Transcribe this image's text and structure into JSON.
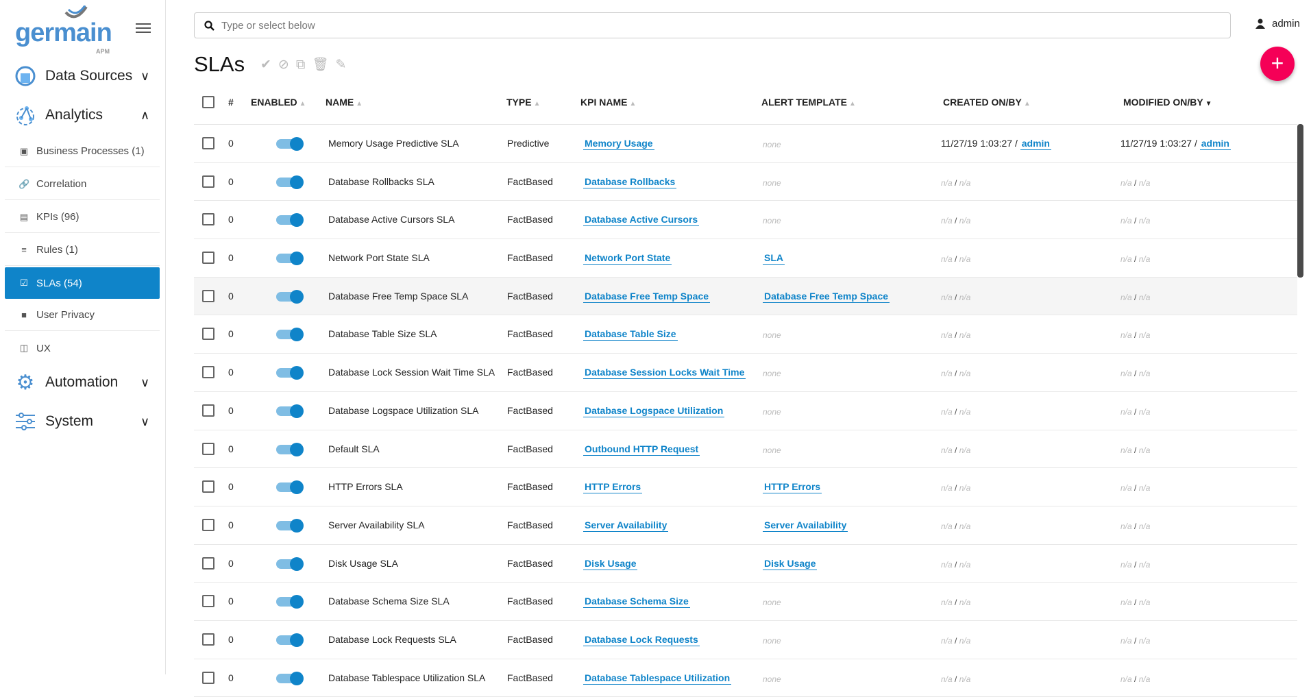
{
  "brand": {
    "name": "germain",
    "sub": "APM"
  },
  "sidebar": {
    "sections": [
      {
        "label": "Data Sources",
        "icon": "database-icon",
        "expanded": false
      },
      {
        "label": "Analytics",
        "icon": "analytics-icon",
        "expanded": true
      },
      {
        "label": "Automation",
        "icon": "gear-icon",
        "expanded": false
      },
      {
        "label": "System",
        "icon": "sliders-icon",
        "expanded": false
      }
    ],
    "items": [
      {
        "label": "Business Processes (1)",
        "icon": "briefcase-icon"
      },
      {
        "label": "Correlation",
        "icon": "link-icon"
      },
      {
        "label": "KPIs (96)",
        "icon": "list-icon"
      },
      {
        "label": "Rules (1)",
        "icon": "rules-icon"
      },
      {
        "label": "SLAs (54)",
        "icon": "clipboard-check-icon",
        "active": true
      },
      {
        "label": "User Privacy",
        "icon": "camera-icon"
      },
      {
        "label": "UX",
        "icon": "monitor-icon"
      }
    ]
  },
  "search": {
    "placeholder": "Type or select below",
    "value": ""
  },
  "user": {
    "name": "admin"
  },
  "page": {
    "title": "SLAs"
  },
  "colors": {
    "accent": "#0f84c9",
    "fab": "#f50057"
  },
  "table": {
    "headers": [
      "#",
      "ENABLED",
      "NAME",
      "TYPE",
      "KPI NAME",
      "ALERT TEMPLATE",
      "CREATED ON/BY",
      "MODIFIED ON/BY"
    ],
    "sorted_column": "MODIFIED ON/BY",
    "rows": [
      {
        "num": "0",
        "enabled": true,
        "name": "Memory Usage Predictive SLA",
        "type": "Predictive",
        "kpi": "Memory Usage",
        "alert": "none",
        "created_on": "11/27/19 1:03:27",
        "created_by": "admin",
        "modified_on": "11/27/19 1:03:27",
        "modified_by": "admin"
      },
      {
        "num": "0",
        "enabled": true,
        "name": "Database Rollbacks SLA",
        "type": "FactBased",
        "kpi": "Database Rollbacks",
        "alert": "none",
        "created_on": "n/a",
        "created_by": "n/a",
        "modified_on": "n/a",
        "modified_by": "n/a"
      },
      {
        "num": "0",
        "enabled": true,
        "name": "Database Active Cursors SLA",
        "type": "FactBased",
        "kpi": "Database Active Cursors",
        "alert": "none",
        "created_on": "n/a",
        "created_by": "n/a",
        "modified_on": "n/a",
        "modified_by": "n/a"
      },
      {
        "num": "0",
        "enabled": true,
        "name": "Network Port State SLA",
        "type": "FactBased",
        "kpi": "Network Port State",
        "alert": "SLA",
        "created_on": "n/a",
        "created_by": "n/a",
        "modified_on": "n/a",
        "modified_by": "n/a"
      },
      {
        "num": "0",
        "enabled": true,
        "name": "Database Free Temp Space SLA",
        "type": "FactBased",
        "kpi": "Database Free Temp Space",
        "alert": "Database Free Temp Space",
        "created_on": "n/a",
        "created_by": "n/a",
        "modified_on": "n/a",
        "modified_by": "n/a",
        "hover": true
      },
      {
        "num": "0",
        "enabled": true,
        "name": "Database Table Size SLA",
        "type": "FactBased",
        "kpi": "Database Table Size",
        "alert": "none",
        "created_on": "n/a",
        "created_by": "n/a",
        "modified_on": "n/a",
        "modified_by": "n/a"
      },
      {
        "num": "0",
        "enabled": true,
        "name": "Database Lock Session Wait Time SLA",
        "type": "FactBased",
        "kpi": "Database Session Locks Wait Time",
        "alert": "none",
        "created_on": "n/a",
        "created_by": "n/a",
        "modified_on": "n/a",
        "modified_by": "n/a"
      },
      {
        "num": "0",
        "enabled": true,
        "name": "Database Logspace Utilization SLA",
        "type": "FactBased",
        "kpi": "Database Logspace Utilization",
        "alert": "none",
        "created_on": "n/a",
        "created_by": "n/a",
        "modified_on": "n/a",
        "modified_by": "n/a"
      },
      {
        "num": "0",
        "enabled": true,
        "name": "Default SLA",
        "type": "FactBased",
        "kpi": "Outbound HTTP Request",
        "alert": "none",
        "created_on": "n/a",
        "created_by": "n/a",
        "modified_on": "n/a",
        "modified_by": "n/a"
      },
      {
        "num": "0",
        "enabled": true,
        "name": "HTTP Errors SLA",
        "type": "FactBased",
        "kpi": "HTTP Errors",
        "alert": "HTTP Errors",
        "created_on": "n/a",
        "created_by": "n/a",
        "modified_on": "n/a",
        "modified_by": "n/a"
      },
      {
        "num": "0",
        "enabled": true,
        "name": "Server Availability SLA",
        "type": "FactBased",
        "kpi": "Server Availability",
        "alert": "Server Availability",
        "created_on": "n/a",
        "created_by": "n/a",
        "modified_on": "n/a",
        "modified_by": "n/a"
      },
      {
        "num": "0",
        "enabled": true,
        "name": "Disk Usage SLA",
        "type": "FactBased",
        "kpi": "Disk Usage",
        "alert": "Disk Usage",
        "created_on": "n/a",
        "created_by": "n/a",
        "modified_on": "n/a",
        "modified_by": "n/a"
      },
      {
        "num": "0",
        "enabled": true,
        "name": "Database Schema Size SLA",
        "type": "FactBased",
        "kpi": "Database Schema Size",
        "alert": "none",
        "created_on": "n/a",
        "created_by": "n/a",
        "modified_on": "n/a",
        "modified_by": "n/a"
      },
      {
        "num": "0",
        "enabled": true,
        "name": "Database Lock Requests SLA",
        "type": "FactBased",
        "kpi": "Database Lock Requests",
        "alert": "none",
        "created_on": "n/a",
        "created_by": "n/a",
        "modified_on": "n/a",
        "modified_by": "n/a"
      },
      {
        "num": "0",
        "enabled": true,
        "name": "Database Tablespace Utilization SLA",
        "type": "FactBased",
        "kpi": "Database Tablespace Utilization",
        "alert": "none",
        "created_on": "n/a",
        "created_by": "n/a",
        "modified_on": "n/a",
        "modified_by": "n/a"
      }
    ]
  }
}
